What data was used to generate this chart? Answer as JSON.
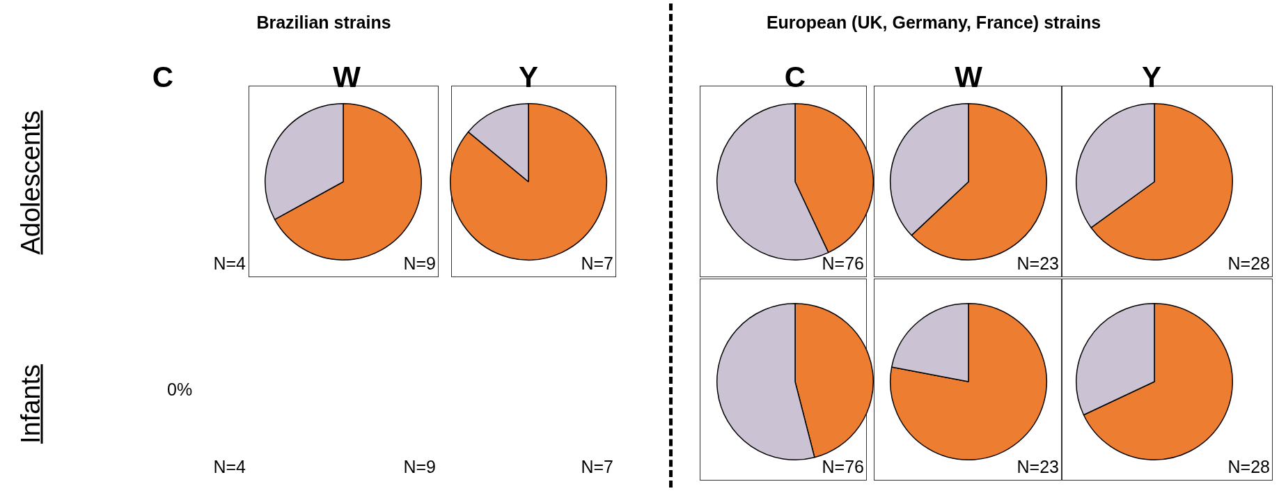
{
  "chart_data": [
    {
      "type": "other",
      "title": "Brazilian strains"
    },
    {
      "type": "other",
      "title": "European (UK, Germany, France) strains"
    },
    {
      "type": "other",
      "title": "Adolescents"
    },
    {
      "type": "other",
      "title": "C",
      "annotations": [
        "N=4"
      ]
    },
    {
      "type": "pie",
      "title": "W",
      "categories": [
        null,
        null
      ],
      "values": [
        67,
        33
      ],
      "colors": [
        "#ed7d31",
        "#cbc3d3"
      ],
      "annotations": [
        "N=9"
      ]
    },
    {
      "type": "pie",
      "title": "Y",
      "categories": [
        null,
        null
      ],
      "values": [
        86,
        14
      ],
      "colors": [
        "#ed7d31",
        "#cbc3d3"
      ],
      "annotations": [
        "N=7"
      ]
    },
    {
      "type": "pie",
      "title": "C",
      "categories": [
        null,
        null
      ],
      "values": [
        43,
        57
      ],
      "colors": [
        "#ed7d31",
        "#cbc3d3"
      ],
      "annotations": [
        "N=76"
      ]
    },
    {
      "type": "pie",
      "title": "W",
      "categories": [
        null,
        null
      ],
      "values": [
        63,
        37
      ],
      "colors": [
        "#ed7d31",
        "#cbc3d3"
      ],
      "annotations": [
        "N=23"
      ]
    },
    {
      "type": "pie",
      "title": "Y",
      "categories": [
        null,
        null
      ],
      "values": [
        65,
        35
      ],
      "colors": [
        "#ed7d31",
        "#cbc3d3"
      ],
      "annotations": [
        "N=28"
      ]
    },
    {
      "type": "other",
      "title": "Infants"
    },
    {
      "type": "other",
      "annotations": [
        "0%",
        "N=4"
      ]
    },
    {
      "type": "other",
      "annotations": [
        "N=9"
      ]
    },
    {
      "type": "other",
      "annotations": [
        "N=7"
      ]
    },
    {
      "type": "pie",
      "categories": [
        null,
        null
      ],
      "values": [
        46,
        54
      ],
      "colors": [
        "#ed7d31",
        "#cbc3d3"
      ],
      "annotations": [
        "N=76"
      ]
    },
    {
      "type": "pie",
      "categories": [
        null,
        null
      ],
      "values": [
        78,
        22
      ],
      "colors": [
        "#ed7d31",
        "#cbc3d3"
      ],
      "annotations": [
        "N=23"
      ]
    },
    {
      "type": "pie",
      "categories": [
        null,
        null
      ],
      "values": [
        68,
        32
      ],
      "colors": [
        "#ed7d31",
        "#cbc3d3"
      ],
      "annotations": [
        "N=28"
      ]
    }
  ]
}
